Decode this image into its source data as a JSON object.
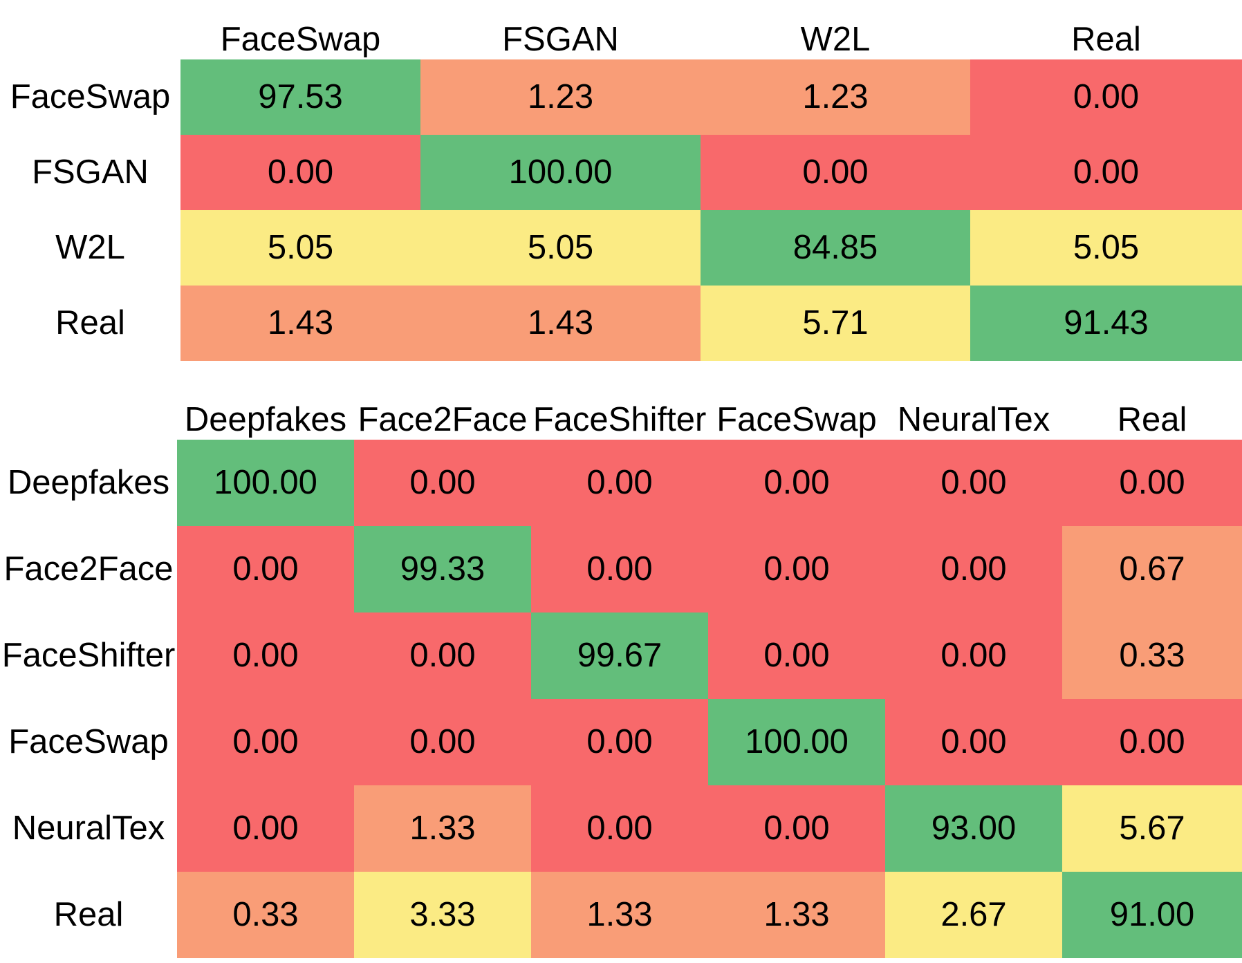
{
  "chart_data": [
    {
      "type": "heatmap",
      "columns": [
        "FaceSwap",
        "FSGAN",
        "W2L",
        "Real"
      ],
      "rows": [
        "FaceSwap",
        "FSGAN",
        "W2L",
        "Real"
      ],
      "values": [
        [
          "97.53",
          "1.23",
          "1.23",
          "0.00"
        ],
        [
          "0.00",
          "100.00",
          "0.00",
          "0.00"
        ],
        [
          "5.05",
          "5.05",
          "84.85",
          "5.05"
        ],
        [
          "1.43",
          "1.43",
          "5.71",
          "91.43"
        ]
      ],
      "color_scale": [
        "#f8696b",
        "#fbeb84",
        "#63be7b"
      ]
    },
    {
      "type": "heatmap",
      "columns": [
        "Deepfakes",
        "Face2Face",
        "FaceShifter",
        "FaceSwap",
        "NeuralTex",
        "Real"
      ],
      "rows": [
        "Deepfakes",
        "Face2Face",
        "FaceShifter",
        "FaceSwap",
        "NeuralTex",
        "Real"
      ],
      "values": [
        [
          "100.00",
          "0.00",
          "0.00",
          "0.00",
          "0.00",
          "0.00"
        ],
        [
          "0.00",
          "99.33",
          "0.00",
          "0.00",
          "0.00",
          "0.67"
        ],
        [
          "0.00",
          "0.00",
          "99.67",
          "0.00",
          "0.00",
          "0.33"
        ],
        [
          "0.00",
          "0.00",
          "0.00",
          "100.00",
          "0.00",
          "0.00"
        ],
        [
          "0.00",
          "1.33",
          "0.00",
          "0.00",
          "93.00",
          "5.67"
        ],
        [
          "0.33",
          "3.33",
          "1.33",
          "1.33",
          "2.67",
          "91.00"
        ]
      ],
      "color_scale": [
        "#f8696b",
        "#fbeb84",
        "#63be7b"
      ]
    }
  ]
}
